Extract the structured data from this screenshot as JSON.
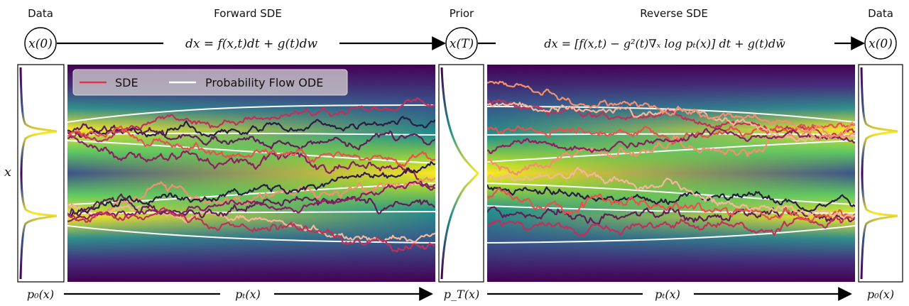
{
  "headers": {
    "data_left": "Data",
    "forward": "Forward SDE",
    "prior": "Prior",
    "reverse": "Reverse SDE",
    "data_right": "Data"
  },
  "nodes": {
    "x0_left": "x(0)",
    "xT": "x(T)",
    "x0_right": "x(0)"
  },
  "equations": {
    "forward": "dx = f(x,t)dt + g(t)dw",
    "reverse": "dx = [f(x,t) − g²(t)∇ₓ log pₜ(x)] dt + g(t)dw̄"
  },
  "axis": {
    "x": "x"
  },
  "legend": {
    "sde": "SDE",
    "ode": "Probability Flow ODE",
    "sde_color": "#e0344a",
    "ode_color": "#ffffff"
  },
  "bottom": {
    "p0_left": "p₀(x)",
    "pt_left": "pₜ(x)",
    "pT": "p_T(x)",
    "pt_right": "pₜ(x)",
    "p0_right": "p₀(x)"
  },
  "colors": {
    "heatmap_low": "#440154",
    "heatmap_mid": "#21918c",
    "heatmap_high": "#fde725",
    "path_palette": [
      "#2a1d43",
      "#5e1f5a",
      "#8b1f63",
      "#c0305a",
      "#e8514e",
      "#f58f6f",
      "#f7b89a"
    ]
  }
}
